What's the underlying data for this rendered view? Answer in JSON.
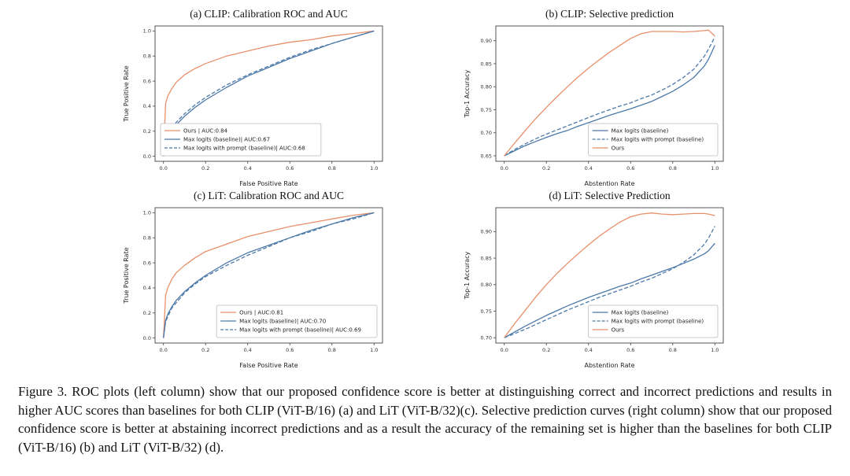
{
  "caption": "Figure 3.  ROC plots (left column) show that our proposed confidence score is better at distinguishing correct and incorrect predictions and results in higher AUC scores than baselines for both CLIP (ViT-B/16) (a) and LiT (ViT-B/32)(c).  Selective prediction curves (right column) show that our proposed confidence score is better at abstaining incorrect predictions and as a result the accuracy of the remaining set is higher than the baselines for both CLIP (ViT-B/16) (b) and LiT (ViT-B/32) (d).",
  "colors": {
    "ours": "#E8906A",
    "baseline": "#4C79A8",
    "frame": "#444444"
  },
  "chart_data": [
    {
      "panel": "a",
      "type": "line",
      "title": "(a) CLIP: Calibration ROC and AUC",
      "xlabel": "False Positive Rate",
      "ylabel": "True Positive Rate",
      "xlim": [
        -0.04,
        1.04
      ],
      "ylim": [
        -0.04,
        1.04
      ],
      "xticks": [
        "0.0",
        "0.2",
        "0.4",
        "0.6",
        "0.8",
        "1.0"
      ],
      "yticks": [
        "0.0",
        "0.2",
        "0.4",
        "0.6",
        "0.8",
        "1.0"
      ],
      "grid": false,
      "legend_loc": "lower-left",
      "series": [
        {
          "name": "Ours | AUC:0.84",
          "color": "#E8906A",
          "style": "solid",
          "x": [
            0,
            0.01,
            0.02,
            0.04,
            0.06,
            0.1,
            0.15,
            0.2,
            0.3,
            0.4,
            0.5,
            0.6,
            0.7,
            0.8,
            0.9,
            1.0
          ],
          "y": [
            0,
            0.42,
            0.48,
            0.54,
            0.59,
            0.65,
            0.7,
            0.74,
            0.8,
            0.84,
            0.88,
            0.91,
            0.93,
            0.96,
            0.98,
            1.0
          ]
        },
        {
          "name": "Max logits (baseline)| AUC:0.67",
          "color": "#4C79A8",
          "style": "solid",
          "x": [
            0,
            0.01,
            0.02,
            0.04,
            0.06,
            0.1,
            0.15,
            0.2,
            0.3,
            0.4,
            0.5,
            0.6,
            0.7,
            0.8,
            0.9,
            1.0
          ],
          "y": [
            0,
            0.1,
            0.15,
            0.21,
            0.25,
            0.32,
            0.39,
            0.45,
            0.55,
            0.64,
            0.71,
            0.78,
            0.84,
            0.9,
            0.95,
            1.0
          ]
        },
        {
          "name": "Max logits with prompt (baseline)| AUC:0.68",
          "color": "#4C79A8",
          "style": "dashed",
          "x": [
            0,
            0.01,
            0.02,
            0.04,
            0.06,
            0.1,
            0.15,
            0.2,
            0.3,
            0.4,
            0.5,
            0.6,
            0.7,
            0.8,
            0.9,
            1.0
          ],
          "y": [
            0,
            0.12,
            0.16,
            0.22,
            0.27,
            0.34,
            0.41,
            0.47,
            0.57,
            0.65,
            0.72,
            0.79,
            0.85,
            0.9,
            0.95,
            1.0
          ]
        }
      ]
    },
    {
      "panel": "b",
      "type": "line",
      "title": "(b) CLIP: Selective prediction",
      "xlabel": "Abstention Rate",
      "ylabel": "Top-1 Accuracy",
      "xlim": [
        -0.04,
        1.04
      ],
      "ylim": [
        0.638,
        0.932
      ],
      "xticks": [
        "0.0",
        "0.2",
        "0.4",
        "0.6",
        "0.8",
        "1.0"
      ],
      "yticks": [
        "0.65",
        "0.70",
        "0.75",
        "0.80",
        "0.85",
        "0.90"
      ],
      "grid": false,
      "legend_loc": "lower-right",
      "series": [
        {
          "name": "Max logits (baseline)",
          "color": "#4C79A8",
          "style": "solid",
          "x": [
            0,
            0.05,
            0.1,
            0.15,
            0.2,
            0.25,
            0.3,
            0.35,
            0.4,
            0.45,
            0.5,
            0.55,
            0.6,
            0.65,
            0.7,
            0.75,
            0.8,
            0.85,
            0.9,
            0.95,
            0.97,
            1.0
          ],
          "y": [
            0.65,
            0.661,
            0.672,
            0.681,
            0.69,
            0.698,
            0.705,
            0.714,
            0.722,
            0.73,
            0.738,
            0.745,
            0.752,
            0.76,
            0.768,
            0.779,
            0.79,
            0.804,
            0.82,
            0.845,
            0.86,
            0.89
          ]
        },
        {
          "name": "Max logits with prompt (baseline)",
          "color": "#4C79A8",
          "style": "dashed",
          "x": [
            0,
            0.05,
            0.1,
            0.15,
            0.2,
            0.25,
            0.3,
            0.35,
            0.4,
            0.45,
            0.5,
            0.55,
            0.6,
            0.65,
            0.7,
            0.75,
            0.8,
            0.85,
            0.9,
            0.95,
            0.97,
            1.0
          ],
          "y": [
            0.65,
            0.664,
            0.676,
            0.687,
            0.697,
            0.706,
            0.715,
            0.724,
            0.733,
            0.742,
            0.75,
            0.758,
            0.765,
            0.774,
            0.782,
            0.793,
            0.805,
            0.82,
            0.838,
            0.866,
            0.882,
            0.908
          ]
        },
        {
          "name": "Ours",
          "color": "#E8906A",
          "style": "solid",
          "x": [
            0,
            0.05,
            0.1,
            0.15,
            0.2,
            0.25,
            0.3,
            0.35,
            0.4,
            0.45,
            0.5,
            0.55,
            0.6,
            0.65,
            0.7,
            0.75,
            0.8,
            0.85,
            0.9,
            0.95,
            0.97,
            1.0
          ],
          "y": [
            0.65,
            0.678,
            0.705,
            0.731,
            0.755,
            0.778,
            0.8,
            0.821,
            0.84,
            0.858,
            0.875,
            0.89,
            0.905,
            0.915,
            0.92,
            0.92,
            0.92,
            0.919,
            0.92,
            0.922,
            0.923,
            0.91
          ]
        }
      ]
    },
    {
      "panel": "c",
      "type": "line",
      "title": "(c) LiT: Calibration ROC and AUC",
      "xlabel": "False Positive Rate",
      "ylabel": "True Positive Rate",
      "xlim": [
        -0.04,
        1.04
      ],
      "ylim": [
        -0.04,
        1.04
      ],
      "xticks": [
        "0.0",
        "0.2",
        "0.4",
        "0.6",
        "0.8",
        "1.0"
      ],
      "yticks": [
        "0.0",
        "0.2",
        "0.4",
        "0.6",
        "0.8",
        "1.0"
      ],
      "grid": false,
      "legend_loc": "lower-right",
      "series": [
        {
          "name": "Ours | AUC:0.81",
          "color": "#E8906A",
          "style": "solid",
          "x": [
            0,
            0.01,
            0.02,
            0.04,
            0.06,
            0.1,
            0.15,
            0.2,
            0.3,
            0.4,
            0.5,
            0.6,
            0.7,
            0.8,
            0.9,
            1.0
          ],
          "y": [
            0,
            0.34,
            0.4,
            0.47,
            0.52,
            0.58,
            0.64,
            0.69,
            0.75,
            0.81,
            0.85,
            0.89,
            0.92,
            0.95,
            0.98,
            1.0
          ]
        },
        {
          "name": "Max logits (baseline)| AUC:0.70",
          "color": "#4C79A8",
          "style": "solid",
          "x": [
            0,
            0.01,
            0.02,
            0.04,
            0.06,
            0.1,
            0.15,
            0.2,
            0.3,
            0.4,
            0.5,
            0.6,
            0.7,
            0.8,
            0.9,
            1.0
          ],
          "y": [
            0,
            0.14,
            0.19,
            0.25,
            0.3,
            0.37,
            0.44,
            0.5,
            0.6,
            0.68,
            0.74,
            0.8,
            0.86,
            0.91,
            0.96,
            1.0
          ]
        },
        {
          "name": "Max logits with prompt (baseline)| AUC:0.69",
          "color": "#4C79A8",
          "style": "dashed",
          "x": [
            0,
            0.01,
            0.02,
            0.04,
            0.06,
            0.1,
            0.15,
            0.2,
            0.3,
            0.4,
            0.5,
            0.6,
            0.7,
            0.8,
            0.9,
            1.0
          ],
          "y": [
            0,
            0.13,
            0.17,
            0.24,
            0.28,
            0.36,
            0.43,
            0.49,
            0.58,
            0.66,
            0.73,
            0.8,
            0.85,
            0.91,
            0.95,
            1.0
          ]
        }
      ]
    },
    {
      "panel": "d",
      "type": "line",
      "title": "(d) LiT: Selective Prediction",
      "xlabel": "Abstention Rate",
      "ylabel": "Top-1 Accuracy",
      "xlim": [
        -0.04,
        1.04
      ],
      "ylim": [
        0.69,
        0.945
      ],
      "xticks": [
        "0.0",
        "0.2",
        "0.4",
        "0.6",
        "0.8",
        "1.0"
      ],
      "yticks": [
        "0.70",
        "0.75",
        "0.80",
        "0.85",
        "0.90"
      ],
      "grid": false,
      "legend_loc": "lower-right",
      "series": [
        {
          "name": "Max logits (baseline)",
          "color": "#4C79A8",
          "style": "solid",
          "x": [
            0,
            0.05,
            0.1,
            0.15,
            0.2,
            0.25,
            0.3,
            0.35,
            0.4,
            0.45,
            0.5,
            0.55,
            0.6,
            0.65,
            0.7,
            0.75,
            0.8,
            0.85,
            0.9,
            0.95,
            0.97,
            1.0
          ],
          "y": [
            0.7,
            0.711,
            0.722,
            0.732,
            0.742,
            0.751,
            0.76,
            0.768,
            0.776,
            0.783,
            0.79,
            0.797,
            0.803,
            0.811,
            0.818,
            0.825,
            0.832,
            0.84,
            0.848,
            0.858,
            0.864,
            0.878
          ]
        },
        {
          "name": "Max logits with prompt (baseline)",
          "color": "#4C79A8",
          "style": "dashed",
          "x": [
            0,
            0.05,
            0.1,
            0.15,
            0.2,
            0.25,
            0.3,
            0.35,
            0.4,
            0.45,
            0.5,
            0.55,
            0.6,
            0.65,
            0.7,
            0.75,
            0.8,
            0.85,
            0.9,
            0.95,
            0.97,
            1.0
          ],
          "y": [
            0.7,
            0.708,
            0.716,
            0.725,
            0.734,
            0.743,
            0.752,
            0.76,
            0.768,
            0.776,
            0.783,
            0.79,
            0.797,
            0.805,
            0.812,
            0.821,
            0.83,
            0.842,
            0.856,
            0.876,
            0.888,
            0.91
          ]
        },
        {
          "name": "Ours",
          "color": "#E8906A",
          "style": "solid",
          "x": [
            0,
            0.05,
            0.1,
            0.15,
            0.2,
            0.25,
            0.3,
            0.35,
            0.4,
            0.45,
            0.5,
            0.55,
            0.6,
            0.65,
            0.7,
            0.75,
            0.8,
            0.85,
            0.9,
            0.95,
            0.97,
            1.0
          ],
          "y": [
            0.7,
            0.727,
            0.752,
            0.777,
            0.8,
            0.821,
            0.84,
            0.858,
            0.875,
            0.891,
            0.905,
            0.918,
            0.928,
            0.933,
            0.935,
            0.933,
            0.932,
            0.933,
            0.934,
            0.934,
            0.933,
            0.93
          ]
        }
      ]
    }
  ]
}
